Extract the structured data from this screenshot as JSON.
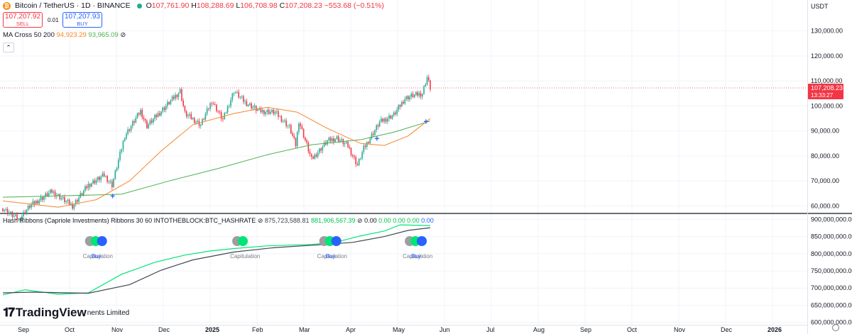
{
  "header": {
    "symbol_title": "Bitcoin / TetherUS · 1D · BINANCE",
    "ohlc": {
      "o_label": "O",
      "o_value": "107,761.90",
      "h_label": "H",
      "h_value": "108,288.69",
      "l_label": "L",
      "l_value": "106,708.98",
      "c_label": "C",
      "c_value": "107,208.23",
      "change": "−553.68 (−0.51%)"
    },
    "sell_price": "107,207.92",
    "sell_label": "SELL",
    "spread": "0.01",
    "buy_price": "107,207.93",
    "buy_label": "BUY"
  },
  "ma_legend": {
    "name": "MA Cross 50 200",
    "ma_fast_value": "94,923.29",
    "ma_slow_value": "93,965.09",
    "eye_icon": "hide-icon"
  },
  "indicator_legend": {
    "name": "Hash Ribbons (Capriole Investments) Ribbons 30 60 INTOTHEBLOCK:BTC_HASHRATE",
    "v1": "875,723,588.81",
    "v2": "881,906,567.39",
    "v3": "0.00",
    "v4": "0.00",
    "v5": "0.00",
    "v6": "0.00",
    "v7": "0.00"
  },
  "watermark": {
    "logo_text": "TradingView",
    "partial_text": "nents Limited"
  },
  "colors": {
    "up": "#22ab94",
    "down": "#f23645",
    "ma_fast": "#f7862b",
    "ma_slow": "#4caf50",
    "hash_fast": "#00e676",
    "hash_slow": "#434651",
    "buy": "#2962ff",
    "grid": "#f0f3fa"
  },
  "chart_data": [
    {
      "type": "candlestick",
      "title": "Bitcoin / TetherUS · 1D · BINANCE",
      "y_axis_unit": "USDT",
      "ylim": [
        57000,
        137000
      ],
      "y_ticks": [
        "130,000.00",
        "120,000.00",
        "110,000.00",
        "100,000.00",
        "90,000.00",
        "80,000.00",
        "70,000.00",
        "60,000.00"
      ],
      "x_ticks": [
        "Sep",
        "Oct",
        "Nov",
        "Dec",
        "2025",
        "Feb",
        "Mar",
        "Apr",
        "May",
        "Jun",
        "Jul",
        "Aug",
        "Sep",
        "Oct",
        "Nov",
        "Dec",
        "2026"
      ],
      "current_price_label": "107,208.23",
      "countdown_label": "13:33:27",
      "price_path": [
        [
          "2024-08-27",
          59000
        ],
        [
          "2024-09-06",
          54500
        ],
        [
          "2024-09-13",
          60000
        ],
        [
          "2024-09-27",
          65800
        ],
        [
          "2024-10-10",
          60000
        ],
        [
          "2024-10-20",
          68400
        ],
        [
          "2024-10-30",
          72300
        ],
        [
          "2024-11-04",
          68400
        ],
        [
          "2024-11-12",
          88000
        ],
        [
          "2024-11-22",
          98000
        ],
        [
          "2024-11-26",
          92000
        ],
        [
          "2024-12-05",
          98000
        ],
        [
          "2024-12-17",
          106000
        ],
        [
          "2024-12-20",
          97000
        ],
        [
          "2024-12-30",
          92500
        ],
        [
          "2025-01-06",
          102000
        ],
        [
          "2025-01-13",
          94500
        ],
        [
          "2025-01-20",
          106000
        ],
        [
          "2025-01-27",
          101500
        ],
        [
          "2025-02-05",
          98000
        ],
        [
          "2025-02-15",
          97500
        ],
        [
          "2025-02-24",
          91500
        ],
        [
          "2025-02-28",
          84300
        ],
        [
          "2025-03-02",
          94000
        ],
        [
          "2025-03-10",
          78600
        ],
        [
          "2025-03-20",
          86000
        ],
        [
          "2025-03-26",
          87200
        ],
        [
          "2025-04-02",
          84000
        ],
        [
          "2025-04-08",
          76300
        ],
        [
          "2025-04-12",
          83000
        ],
        [
          "2025-04-22",
          93500
        ],
        [
          "2025-05-01",
          96500
        ],
        [
          "2025-05-08",
          103000
        ],
        [
          "2025-05-12",
          104000
        ],
        [
          "2025-05-19",
          105000
        ],
        [
          "2025-05-21",
          109500
        ],
        [
          "2025-05-22",
          111500
        ],
        [
          "2025-05-24",
          107208
        ]
      ],
      "ma_fast": [
        [
          "2024-08-27",
          62000
        ],
        [
          "2024-10-01",
          59500
        ],
        [
          "2024-10-25",
          62500
        ],
        [
          "2024-11-15",
          70000
        ],
        [
          "2024-12-05",
          82000
        ],
        [
          "2024-12-25",
          92500
        ],
        [
          "2025-01-20",
          97000
        ],
        [
          "2025-02-10",
          99500
        ],
        [
          "2025-03-01",
          97500
        ],
        [
          "2025-03-20",
          91000
        ],
        [
          "2025-04-10",
          85000
        ],
        [
          "2025-04-25",
          84200
        ],
        [
          "2025-05-10",
          88000
        ],
        [
          "2025-05-24",
          94923
        ]
      ],
      "ma_slow": [
        [
          "2024-08-27",
          63500
        ],
        [
          "2024-10-01",
          64000
        ],
        [
          "2024-11-10",
          64700
        ],
        [
          "2024-12-10",
          70000
        ],
        [
          "2025-01-10",
          75000
        ],
        [
          "2025-02-10",
          80500
        ],
        [
          "2025-03-10",
          84500
        ],
        [
          "2025-04-10",
          86500
        ],
        [
          "2025-05-01",
          89500
        ],
        [
          "2025-05-24",
          93965
        ]
      ],
      "cross_markers": [
        [
          "2024-11-05",
          64000
        ],
        [
          "2025-04-21",
          87000
        ],
        [
          "2025-05-22",
          93800
        ]
      ]
    },
    {
      "type": "line",
      "title": "Hash Ribbons (Capriole Investments) Ribbons 30 60 INTOTHEBLOCK:BTC_HASHRATE",
      "ylim": [
        593000000,
        907000000
      ],
      "y_ticks": [
        "900,000,000.00",
        "850,000,000.00",
        "800,000,000.00",
        "750,000,000.00",
        "700,000,000.00",
        "650,000,000.00",
        "600,000,000.00"
      ],
      "series": [
        {
          "name": "30",
          "values": [
            [
              "2024-08-27",
              680000000
            ],
            [
              "2024-09-10",
              695000000
            ],
            [
              "2024-10-01",
              682000000
            ],
            [
              "2024-10-20",
              686000000
            ],
            [
              "2024-11-10",
              740000000
            ],
            [
              "2024-12-01",
              775000000
            ],
            [
              "2024-12-20",
              796000000
            ],
            [
              "2025-01-05",
              808000000
            ],
            [
              "2025-01-20",
              815000000
            ],
            [
              "2025-02-10",
              823000000
            ],
            [
              "2025-03-10",
              827000000
            ],
            [
              "2025-03-25",
              833000000
            ],
            [
              "2025-04-10",
              852000000
            ],
            [
              "2025-04-25",
              866000000
            ],
            [
              "2025-05-05",
              884000000
            ],
            [
              "2025-05-24",
              881906567
            ]
          ]
        },
        {
          "name": "60",
          "values": [
            [
              "2024-08-27",
              686000000
            ],
            [
              "2024-09-15",
              688000000
            ],
            [
              "2024-10-20",
              685000000
            ],
            [
              "2024-11-15",
              710000000
            ],
            [
              "2024-12-05",
              752000000
            ],
            [
              "2024-12-25",
              782000000
            ],
            [
              "2025-01-20",
              805000000
            ],
            [
              "2025-02-15",
              818000000
            ],
            [
              "2025-03-15",
              826000000
            ],
            [
              "2025-04-05",
              833000000
            ],
            [
              "2025-04-25",
              850000000
            ],
            [
              "2025-05-10",
              868000000
            ],
            [
              "2025-05-24",
              875723588
            ]
          ]
        }
      ],
      "signals": [
        {
          "date": "2024-10-30",
          "labels": [
            "Capitulation",
            "Buy"
          ]
        },
        {
          "date": "2025-01-31",
          "labels": [
            "Capitulation"
          ]
        },
        {
          "date": "2025-03-27",
          "labels": [
            "Capitulation",
            "Buy"
          ]
        },
        {
          "date": "2025-05-20",
          "labels": [
            "Capitulation",
            "Buy"
          ]
        }
      ]
    }
  ]
}
